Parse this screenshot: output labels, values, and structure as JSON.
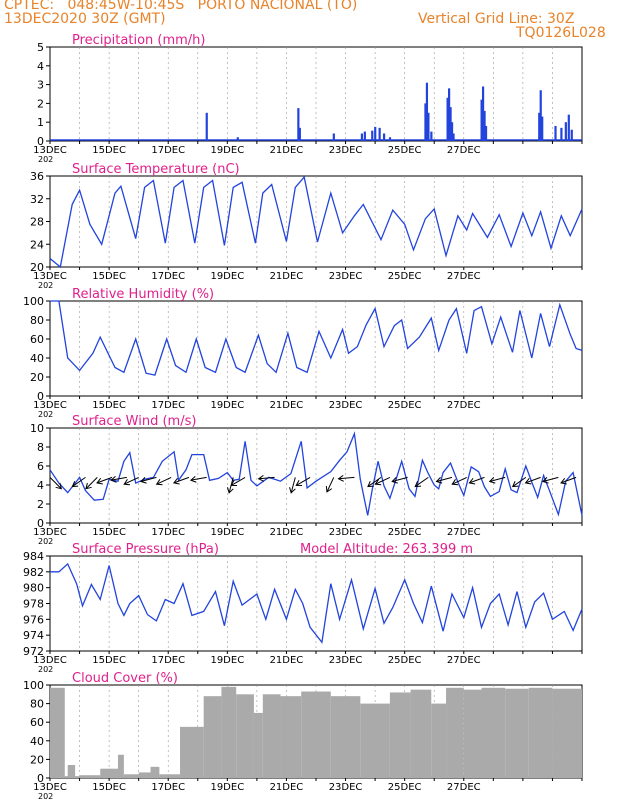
{
  "header": {
    "line1": "CPTEC:   048:45W-10:45S   PORTO NACIONAL (TO)",
    "line2": "13DEC2020 30Z (GMT)",
    "grid_note": "Vertical Grid Line: 30Z",
    "code": "TQ0126L028"
  },
  "colors": {
    "header": "#e8832a",
    "title": "#e0208c",
    "series": "#2244dd",
    "cloud": "#aaaaaa",
    "wind_arrow": "#000000"
  },
  "x_axis": {
    "date_labels": [
      "13DEC",
      "15DEC",
      "17DEC",
      "19DEC",
      "21DEC",
      "23DEC",
      "25DEC",
      "27DEC"
    ],
    "start_stub": "202"
  },
  "chart_data": [
    {
      "type": "bar",
      "title": "Precipitation (mm/h)",
      "ylim": [
        0,
        5
      ],
      "yticks": [
        "0",
        "1",
        "2",
        "3",
        "4",
        "5"
      ],
      "x_unit": "days since 13DEC2020 00Z",
      "bars": [
        [
          5.3,
          1.5
        ],
        [
          6.35,
          0.2
        ],
        [
          8.4,
          1.75
        ],
        [
          8.45,
          0.7
        ],
        [
          9.6,
          0.4
        ],
        [
          10.55,
          0.4
        ],
        [
          10.65,
          0.5
        ],
        [
          10.9,
          0.55
        ],
        [
          11.0,
          0.75
        ],
        [
          11.15,
          0.7
        ],
        [
          11.3,
          0.4
        ],
        [
          11.5,
          0.2
        ],
        [
          12.7,
          2.0
        ],
        [
          12.75,
          3.1
        ],
        [
          12.8,
          1.5
        ],
        [
          12.9,
          0.5
        ],
        [
          13.45,
          2.3
        ],
        [
          13.5,
          2.8
        ],
        [
          13.55,
          1.8
        ],
        [
          13.6,
          1.0
        ],
        [
          13.65,
          0.4
        ],
        [
          14.6,
          2.2
        ],
        [
          14.65,
          2.9
        ],
        [
          14.7,
          1.6
        ],
        [
          14.75,
          0.8
        ],
        [
          16.55,
          1.5
        ],
        [
          16.6,
          2.7
        ],
        [
          16.65,
          1.3
        ],
        [
          17.1,
          0.8
        ],
        [
          17.3,
          0.7
        ],
        [
          17.45,
          1.0
        ],
        [
          17.55,
          1.4
        ],
        [
          17.65,
          0.6
        ]
      ]
    },
    {
      "type": "line",
      "title": "Surface Temperature (nC)",
      "ylim": [
        20,
        36
      ],
      "yticks": [
        "20",
        "24",
        "28",
        "32",
        "36"
      ],
      "points": [
        [
          0,
          21.5
        ],
        [
          0.35,
          20
        ],
        [
          0.75,
          31
        ],
        [
          1,
          33.5
        ],
        [
          1.35,
          27.5
        ],
        [
          1.75,
          24
        ],
        [
          2.2,
          33
        ],
        [
          2.4,
          34.2
        ],
        [
          2.9,
          25
        ],
        [
          3.2,
          34
        ],
        [
          3.5,
          35.2
        ],
        [
          3.9,
          24.2
        ],
        [
          4.2,
          34
        ],
        [
          4.5,
          35.2
        ],
        [
          4.9,
          24.2
        ],
        [
          5.2,
          34
        ],
        [
          5.5,
          35.2
        ],
        [
          5.9,
          23.8
        ],
        [
          6.2,
          34
        ],
        [
          6.5,
          34.9
        ],
        [
          6.95,
          24.2
        ],
        [
          7.2,
          33
        ],
        [
          7.5,
          34.5
        ],
        [
          8,
          24.5
        ],
        [
          8.3,
          34
        ],
        [
          8.6,
          35.8
        ],
        [
          9.05,
          24.4
        ],
        [
          9.5,
          33
        ],
        [
          9.9,
          26
        ],
        [
          10.3,
          29
        ],
        [
          10.6,
          31
        ],
        [
          11.2,
          24.8
        ],
        [
          11.6,
          30
        ],
        [
          12,
          27.5
        ],
        [
          12.3,
          23
        ],
        [
          12.7,
          28.5
        ],
        [
          13,
          30.2
        ],
        [
          13.4,
          22
        ],
        [
          13.8,
          29
        ],
        [
          14.1,
          26.5
        ],
        [
          14.3,
          29.4
        ],
        [
          14.8,
          25.2
        ],
        [
          15.2,
          29.2
        ],
        [
          15.6,
          23.6
        ],
        [
          16,
          29.5
        ],
        [
          16.3,
          25.5
        ],
        [
          16.6,
          29.7
        ],
        [
          16.95,
          23.3
        ],
        [
          17.3,
          29
        ],
        [
          17.6,
          25.5
        ],
        [
          18,
          30.2
        ]
      ]
    },
    {
      "type": "line",
      "title": "Relative Humidity (%)",
      "ylim": [
        0,
        100
      ],
      "yticks": [
        "0",
        "20",
        "40",
        "60",
        "80",
        "100"
      ],
      "points": [
        [
          0,
          100
        ],
        [
          0.3,
          100
        ],
        [
          0.6,
          40
        ],
        [
          1,
          27
        ],
        [
          1.45,
          45
        ],
        [
          1.7,
          62
        ],
        [
          2.2,
          30
        ],
        [
          2.5,
          25
        ],
        [
          2.9,
          60
        ],
        [
          3.25,
          24
        ],
        [
          3.55,
          22
        ],
        [
          3.95,
          60
        ],
        [
          4.25,
          32
        ],
        [
          4.6,
          25
        ],
        [
          4.95,
          60
        ],
        [
          5.25,
          30
        ],
        [
          5.6,
          25
        ],
        [
          5.95,
          60
        ],
        [
          6.3,
          30
        ],
        [
          6.6,
          25
        ],
        [
          7.05,
          64
        ],
        [
          7.35,
          34
        ],
        [
          7.65,
          25
        ],
        [
          8.05,
          66
        ],
        [
          8.35,
          30
        ],
        [
          8.7,
          25
        ],
        [
          9.1,
          68
        ],
        [
          9.5,
          40
        ],
        [
          9.9,
          70
        ],
        [
          10.1,
          45
        ],
        [
          10.4,
          52
        ],
        [
          10.7,
          75
        ],
        [
          11,
          92
        ],
        [
          11.3,
          52
        ],
        [
          11.65,
          74
        ],
        [
          11.9,
          80
        ],
        [
          12.1,
          50
        ],
        [
          12.5,
          62
        ],
        [
          12.9,
          82
        ],
        [
          13.15,
          48
        ],
        [
          13.5,
          80
        ],
        [
          13.75,
          92
        ],
        [
          14.1,
          45
        ],
        [
          14.35,
          90
        ],
        [
          14.6,
          94
        ],
        [
          14.95,
          55
        ],
        [
          15.25,
          83
        ],
        [
          15.65,
          46
        ],
        [
          15.9,
          90
        ],
        [
          16.3,
          40
        ],
        [
          16.6,
          87
        ],
        [
          16.9,
          52
        ],
        [
          17.25,
          96
        ],
        [
          17.6,
          65
        ],
        [
          17.8,
          50
        ],
        [
          18,
          48
        ]
      ]
    },
    {
      "type": "line",
      "title": "Surface Wind (m/s)",
      "ylim": [
        0,
        10
      ],
      "yticks": [
        "0",
        "2",
        "4",
        "6",
        "8",
        "10"
      ],
      "points": [
        [
          0,
          5.6
        ],
        [
          0.3,
          4.2
        ],
        [
          0.6,
          3.2
        ],
        [
          1,
          4.8
        ],
        [
          1.2,
          3.4
        ],
        [
          1.5,
          2.4
        ],
        [
          1.8,
          2.5
        ],
        [
          2,
          4.6
        ],
        [
          2.3,
          4.4
        ],
        [
          2.5,
          6.5
        ],
        [
          2.7,
          7.4
        ],
        [
          2.9,
          4.2
        ],
        [
          3.2,
          4.6
        ],
        [
          3.5,
          4.8
        ],
        [
          3.8,
          6.5
        ],
        [
          4.2,
          7.5
        ],
        [
          4.35,
          4.5
        ],
        [
          4.6,
          5.6
        ],
        [
          4.8,
          7.2
        ],
        [
          5.2,
          7.2
        ],
        [
          5.4,
          4.5
        ],
        [
          5.7,
          4.7
        ],
        [
          6,
          5.3
        ],
        [
          6.2,
          4.5
        ],
        [
          6.4,
          4.6
        ],
        [
          6.6,
          8.6
        ],
        [
          6.8,
          4.5
        ],
        [
          7,
          3.9
        ],
        [
          7.4,
          4.8
        ],
        [
          7.6,
          4.6
        ],
        [
          7.8,
          4.4
        ],
        [
          8.15,
          5.2
        ],
        [
          8.5,
          8.6
        ],
        [
          8.7,
          3.7
        ],
        [
          9,
          4.4
        ],
        [
          9.5,
          5.4
        ],
        [
          9.8,
          6.6
        ],
        [
          10.05,
          7.5
        ],
        [
          10.3,
          9.4
        ],
        [
          10.5,
          4.6
        ],
        [
          10.75,
          0.8
        ],
        [
          10.9,
          3.5
        ],
        [
          11.1,
          6.5
        ],
        [
          11.3,
          3.9
        ],
        [
          11.5,
          2.6
        ],
        [
          11.75,
          5
        ],
        [
          11.9,
          6.5
        ],
        [
          12.15,
          3.6
        ],
        [
          12.35,
          2.8
        ],
        [
          12.6,
          6.6
        ],
        [
          12.8,
          5.2
        ],
        [
          13,
          4
        ],
        [
          13.15,
          3.6
        ],
        [
          13.3,
          5.3
        ],
        [
          13.55,
          6.3
        ],
        [
          13.8,
          4.3
        ],
        [
          14,
          2.9
        ],
        [
          14.25,
          5.9
        ],
        [
          14.5,
          5.4
        ],
        [
          14.7,
          3.8
        ],
        [
          14.9,
          2.8
        ],
        [
          15.2,
          3.3
        ],
        [
          15.4,
          5.7
        ],
        [
          15.6,
          3.5
        ],
        [
          15.8,
          3.2
        ],
        [
          16.1,
          6
        ],
        [
          16.3,
          4.3
        ],
        [
          16.5,
          2.7
        ],
        [
          16.7,
          5
        ],
        [
          16.9,
          3.4
        ],
        [
          17.2,
          0.9
        ],
        [
          17.45,
          4.4
        ],
        [
          17.7,
          5.3
        ],
        [
          18,
          0.8
        ]
      ],
      "arrows_deg": [
        [
          0,
          -45
        ],
        [
          1.2,
          -145
        ],
        [
          1.6,
          -135
        ],
        [
          2.1,
          -160
        ],
        [
          2.6,
          -170
        ],
        [
          3,
          -155
        ],
        [
          3.6,
          -165
        ],
        [
          4.1,
          -155
        ],
        [
          4.7,
          -160
        ],
        [
          5.3,
          -170
        ],
        [
          6.2,
          -105
        ],
        [
          6.6,
          -150
        ],
        [
          7.6,
          -175
        ],
        [
          8.3,
          -105
        ],
        [
          8.8,
          -150
        ],
        [
          9.6,
          -115
        ],
        [
          10.3,
          -175
        ],
        [
          11.2,
          -145
        ],
        [
          11.5,
          -155
        ],
        [
          12.1,
          -165
        ],
        [
          12.8,
          -145
        ],
        [
          13.6,
          -165
        ],
        [
          14.1,
          -155
        ],
        [
          14.7,
          -160
        ],
        [
          15.4,
          -165
        ],
        [
          16.1,
          -145
        ],
        [
          16.6,
          -160
        ],
        [
          17.2,
          -165
        ],
        [
          17.8,
          -160
        ]
      ]
    },
    {
      "type": "line",
      "title": "Surface Pressure (hPa)",
      "extra_label": "Model Altitude: 263.399 m",
      "ylim": [
        972,
        984
      ],
      "yticks": [
        "972",
        "974",
        "976",
        "978",
        "980",
        "982",
        "984"
      ],
      "points": [
        [
          0,
          982
        ],
        [
          0.3,
          982
        ],
        [
          0.6,
          983
        ],
        [
          0.9,
          980.5
        ],
        [
          1.1,
          977.7
        ],
        [
          1.4,
          980.4
        ],
        [
          1.7,
          978.5
        ],
        [
          2,
          982.8
        ],
        [
          2.3,
          978
        ],
        [
          2.5,
          976.5
        ],
        [
          2.7,
          978
        ],
        [
          3,
          979
        ],
        [
          3.3,
          976.6
        ],
        [
          3.6,
          975.8
        ],
        [
          3.9,
          978.5
        ],
        [
          4.2,
          978
        ],
        [
          4.5,
          980.5
        ],
        [
          4.8,
          976.5
        ],
        [
          5.2,
          977
        ],
        [
          5.6,
          979.5
        ],
        [
          5.9,
          975.2
        ],
        [
          6.2,
          980.8
        ],
        [
          6.5,
          977.8
        ],
        [
          7,
          979.2
        ],
        [
          7.3,
          976
        ],
        [
          7.6,
          979.8
        ],
        [
          8,
          976
        ],
        [
          8.3,
          979.8
        ],
        [
          8.55,
          978
        ],
        [
          8.8,
          975
        ],
        [
          9.2,
          973.1
        ],
        [
          9.5,
          980.5
        ],
        [
          9.8,
          976
        ],
        [
          10.2,
          981
        ],
        [
          10.6,
          974.8
        ],
        [
          11,
          979.9
        ],
        [
          11.3,
          975.5
        ],
        [
          11.6,
          977.5
        ],
        [
          12,
          981
        ],
        [
          12.3,
          978
        ],
        [
          12.6,
          975.6
        ],
        [
          12.9,
          980.2
        ],
        [
          13.3,
          974.5
        ],
        [
          13.6,
          979.2
        ],
        [
          14,
          976.2
        ],
        [
          14.3,
          980
        ],
        [
          14.6,
          975
        ],
        [
          14.9,
          978
        ],
        [
          15.2,
          979.2
        ],
        [
          15.5,
          975.3
        ],
        [
          15.8,
          979.5
        ],
        [
          16.1,
          975
        ],
        [
          16.4,
          978.2
        ],
        [
          16.7,
          979.3
        ],
        [
          17,
          976
        ],
        [
          17.4,
          977
        ],
        [
          17.7,
          974.6
        ],
        [
          18,
          977.3
        ]
      ]
    },
    {
      "type": "bar",
      "title": "Cloud Cover (%)",
      "ylim": [
        0,
        100
      ],
      "yticks": [
        "0",
        "20",
        "40",
        "60",
        "80",
        "100"
      ],
      "segments": [
        [
          0,
          0.5,
          97
        ],
        [
          0.5,
          1.0,
          2
        ],
        [
          0.6,
          0.85,
          14
        ],
        [
          1.0,
          1.7,
          3
        ],
        [
          1.7,
          2.3,
          10
        ],
        [
          2.3,
          2.5,
          25
        ],
        [
          2.5,
          3.0,
          4
        ],
        [
          3.0,
          3.4,
          6
        ],
        [
          3.4,
          3.7,
          12
        ],
        [
          3.7,
          4.4,
          4
        ],
        [
          4.4,
          5.2,
          55
        ],
        [
          5.2,
          5.8,
          88
        ],
        [
          5.8,
          6.3,
          98
        ],
        [
          6.3,
          6.9,
          90
        ],
        [
          6.9,
          7.2,
          70
        ],
        [
          7.2,
          7.8,
          90
        ],
        [
          7.8,
          8.5,
          88
        ],
        [
          8.5,
          9.5,
          93
        ],
        [
          9.5,
          10.5,
          88
        ],
        [
          10.5,
          11.5,
          80
        ],
        [
          11.5,
          12.2,
          92
        ],
        [
          12.2,
          12.9,
          95
        ],
        [
          12.9,
          13.4,
          80
        ],
        [
          13.4,
          14,
          97
        ],
        [
          14,
          14.6,
          95
        ],
        [
          14.6,
          15.4,
          97
        ],
        [
          15.4,
          16.2,
          96
        ],
        [
          16.2,
          17,
          97
        ],
        [
          17,
          18,
          96
        ]
      ]
    }
  ]
}
